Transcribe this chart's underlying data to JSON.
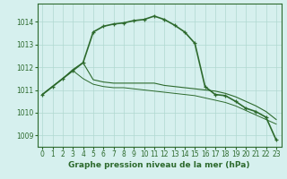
{
  "line_color": "#2d6a2d",
  "background_color": "#d6f0ee",
  "grid_color": "#b0d8d0",
  "ylim": [
    1008.5,
    1014.8
  ],
  "yticks": [
    1009,
    1010,
    1011,
    1012,
    1013,
    1014
  ],
  "xlim": [
    -0.5,
    23.5
  ],
  "xticks": [
    0,
    1,
    2,
    3,
    4,
    5,
    6,
    7,
    8,
    9,
    10,
    11,
    12,
    13,
    14,
    15,
    16,
    17,
    18,
    19,
    20,
    21,
    22,
    23
  ],
  "xlabel": "Graphe pression niveau de la mer (hPa)",
  "xlabel_fontsize": 6.5,
  "tick_fontsize": 5.5,
  "s1_y": [
    1010.8,
    1011.15,
    1011.5,
    1011.85,
    1012.2,
    1013.55,
    1013.8,
    1013.9,
    1013.95,
    1014.05,
    1014.1,
    1014.25,
    1014.1,
    1013.85,
    1013.55,
    1013.05,
    1011.15,
    1010.8,
    1010.75,
    1010.5,
    1010.2,
    1010.05,
    1009.8,
    1008.8
  ],
  "s2_y": [
    1010.8,
    1011.15,
    1011.5,
    1011.9,
    1012.2,
    1011.45,
    1011.35,
    1011.3,
    1011.3,
    1011.3,
    1011.3,
    1011.3,
    1011.2,
    1011.15,
    1011.1,
    1011.05,
    1011.0,
    1010.95,
    1010.85,
    1010.7,
    1010.5,
    1010.3,
    1010.05,
    1009.7
  ],
  "s3_y": [
    1010.8,
    1011.15,
    1011.5,
    1011.85,
    1011.5,
    1011.25,
    1011.15,
    1011.1,
    1011.1,
    1011.05,
    1011.0,
    1010.95,
    1010.9,
    1010.85,
    1010.8,
    1010.75,
    1010.65,
    1010.55,
    1010.45,
    1010.3,
    1010.1,
    1009.9,
    1009.7,
    1009.5
  ]
}
